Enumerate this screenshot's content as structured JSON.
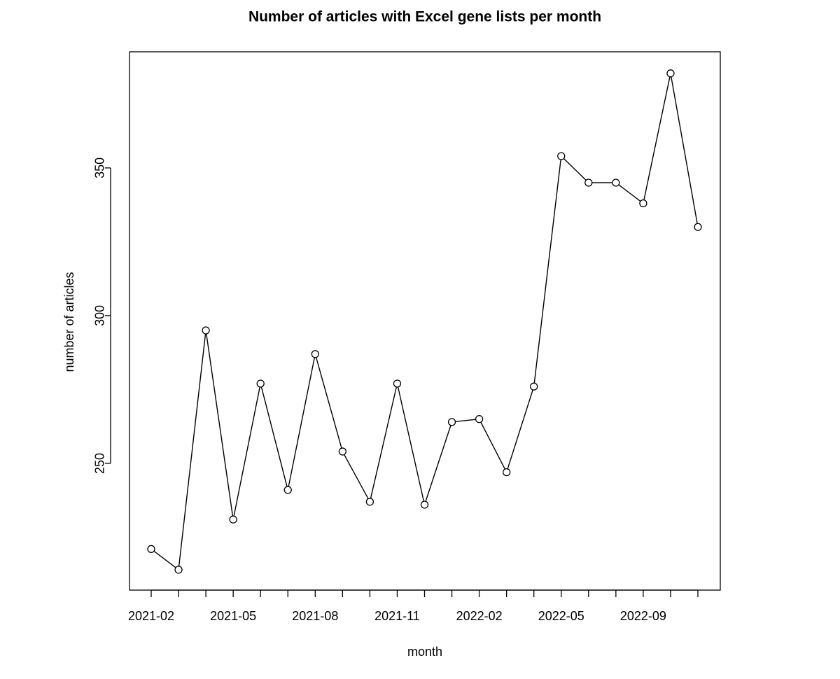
{
  "chart_data": {
    "type": "line",
    "title": "Number of articles with Excel gene lists per month",
    "x_label": "month",
    "y_label": "number of articles",
    "categories": [
      "2021-02",
      null,
      null,
      "2021-05",
      null,
      null,
      "2021-08",
      null,
      null,
      "2021-11",
      null,
      null,
      "2022-02",
      null,
      null,
      "2022-05",
      null,
      null,
      "2022-09",
      null,
      null
    ],
    "values": [
      221,
      214,
      295,
      231,
      277,
      241,
      287,
      254,
      237,
      277,
      236,
      264,
      265,
      247,
      276,
      354,
      345,
      345,
      338,
      382,
      330
    ],
    "color": "#000000",
    "ylim": [
      207.1,
      389.3
    ],
    "yticks": [
      250,
      300,
      350
    ]
  }
}
